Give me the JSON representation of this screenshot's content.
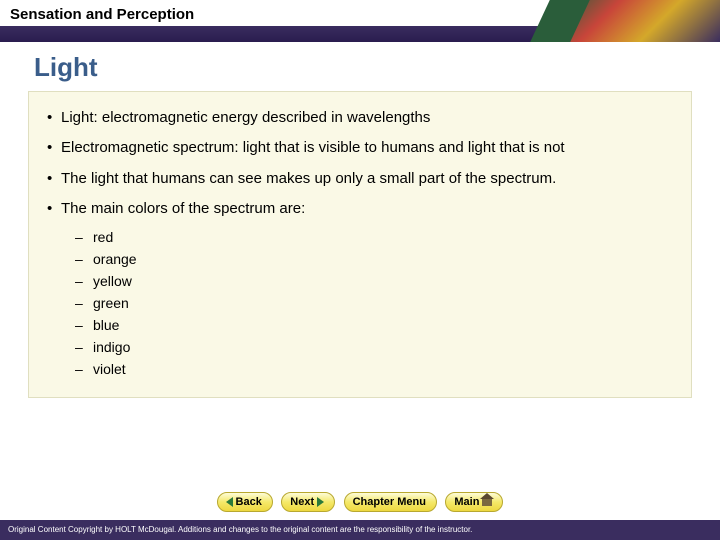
{
  "header": {
    "chapter": "Sensation and Perception"
  },
  "title": {
    "text": "Light",
    "color": "#3a5d8a"
  },
  "bullets": [
    {
      "text": "Light: electromagnetic energy described in wavelengths"
    },
    {
      "text": "Electromagnetic spectrum: light that is visible to humans and light that is not"
    },
    {
      "text": "The light that humans can see makes up only a small part of the spectrum."
    },
    {
      "text": "The main colors of the spectrum are:"
    }
  ],
  "colors": [
    {
      "name": "red"
    },
    {
      "name": "orange"
    },
    {
      "name": "yellow"
    },
    {
      "name": "green"
    },
    {
      "name": "blue"
    },
    {
      "name": "indigo"
    },
    {
      "name": "violet"
    }
  ],
  "nav": {
    "back": "Back",
    "next": "Next",
    "menu": "Chapter Menu",
    "main": "Main"
  },
  "footer": {
    "text": "Original Content Copyright by HOLT McDougal. Additions and changes to the original content are the responsibility of the instructor."
  },
  "style": {
    "content_bg": "#faf9e6",
    "header_bar": "#3a2d5f",
    "btn_grad_top": "#fefcd8",
    "btn_grad_bot": "#eed840"
  }
}
